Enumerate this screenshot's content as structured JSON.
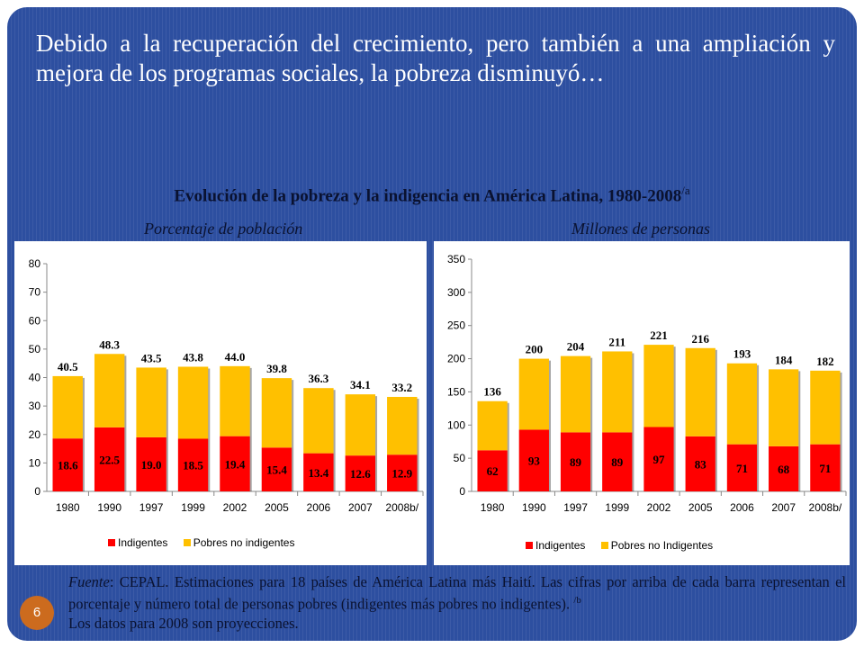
{
  "headline": "Debido a la recuperación del crecimiento, pero también a una ampliación y mejora de los programas sociales, la pobreza disminuyó…",
  "chart_title": "Evolución de la pobreza y la indigencia en América Latina, 1980-2008",
  "chart_title_note": "/a",
  "page_number": "6",
  "footnote": {
    "source_label": "Fuente",
    "text": ": CEPAL. Estimaciones para 18 países de América Latina más Haití. Las cifras por arriba de cada barra representan el porcentaje y número total de personas pobres (indigentes más pobres no indigentes).",
    "note_marker": "/b",
    "note_text": "Los datos para 2008 son proyecciones."
  },
  "colors": {
    "indigentes": "#ff0000",
    "pobres_no_indigentes": "#ffc000",
    "background": "#2d4fa0",
    "page_badge": "#cc6b1e"
  },
  "chart_data": [
    {
      "type": "bar",
      "stacked": true,
      "subtitle": "Porcentaje de población",
      "categories": [
        "1980",
        "1990",
        "1997",
        "1999",
        "2002",
        "2005",
        "2006",
        "2007",
        "2008b/"
      ],
      "ylim": [
        0,
        80
      ],
      "yticks": [
        0,
        10,
        20,
        30,
        40,
        50,
        60,
        70,
        80
      ],
      "series": [
        {
          "name": "Indigentes",
          "values": [
            18.6,
            22.5,
            19.0,
            18.5,
            19.4,
            15.4,
            13.4,
            12.6,
            12.9
          ]
        },
        {
          "name": "Pobres no indigentes",
          "values": [
            21.9,
            25.8,
            24.5,
            25.3,
            24.6,
            24.4,
            22.9,
            21.5,
            20.3
          ]
        }
      ],
      "totals": [
        40.5,
        48.3,
        43.5,
        43.8,
        44.0,
        39.8,
        36.3,
        34.1,
        33.2
      ],
      "value_labels": [
        "18.6",
        "22.5",
        "19.0",
        "18.5",
        "19.4",
        "15.4",
        "13.4",
        "12.6",
        "12.9"
      ],
      "total_labels": [
        "40.5",
        "48.3",
        "43.5",
        "43.8",
        "44.0",
        "39.8",
        "36.3",
        "34.1",
        "33.2"
      ],
      "legend": [
        "Indigentes",
        "Pobres no indigentes"
      ],
      "legend_position": "bottom"
    },
    {
      "type": "bar",
      "stacked": true,
      "subtitle": "Millones de personas",
      "categories": [
        "1980",
        "1990",
        "1997",
        "1999",
        "2002",
        "2005",
        "2006",
        "2007",
        "2008b/"
      ],
      "ylim": [
        0,
        350
      ],
      "yticks": [
        0,
        50,
        100,
        150,
        200,
        250,
        300,
        350
      ],
      "series": [
        {
          "name": "Indigentes",
          "values": [
            62,
            93,
            89,
            89,
            97,
            83,
            71,
            68,
            71
          ]
        },
        {
          "name": "Pobres no Indigentes",
          "values": [
            74,
            107,
            115,
            122,
            124,
            133,
            122,
            116,
            111
          ]
        }
      ],
      "totals": [
        136,
        200,
        204,
        211,
        221,
        216,
        193,
        184,
        182
      ],
      "value_labels": [
        "62",
        "93",
        "89",
        "89",
        "97",
        "83",
        "71",
        "68",
        "71"
      ],
      "total_labels": [
        "136",
        "200",
        "204",
        "211",
        "221",
        "216",
        "193",
        "184",
        "182"
      ],
      "legend": [
        "Indigentes",
        "Pobres no Indigentes"
      ],
      "legend_position": "bottom"
    }
  ]
}
